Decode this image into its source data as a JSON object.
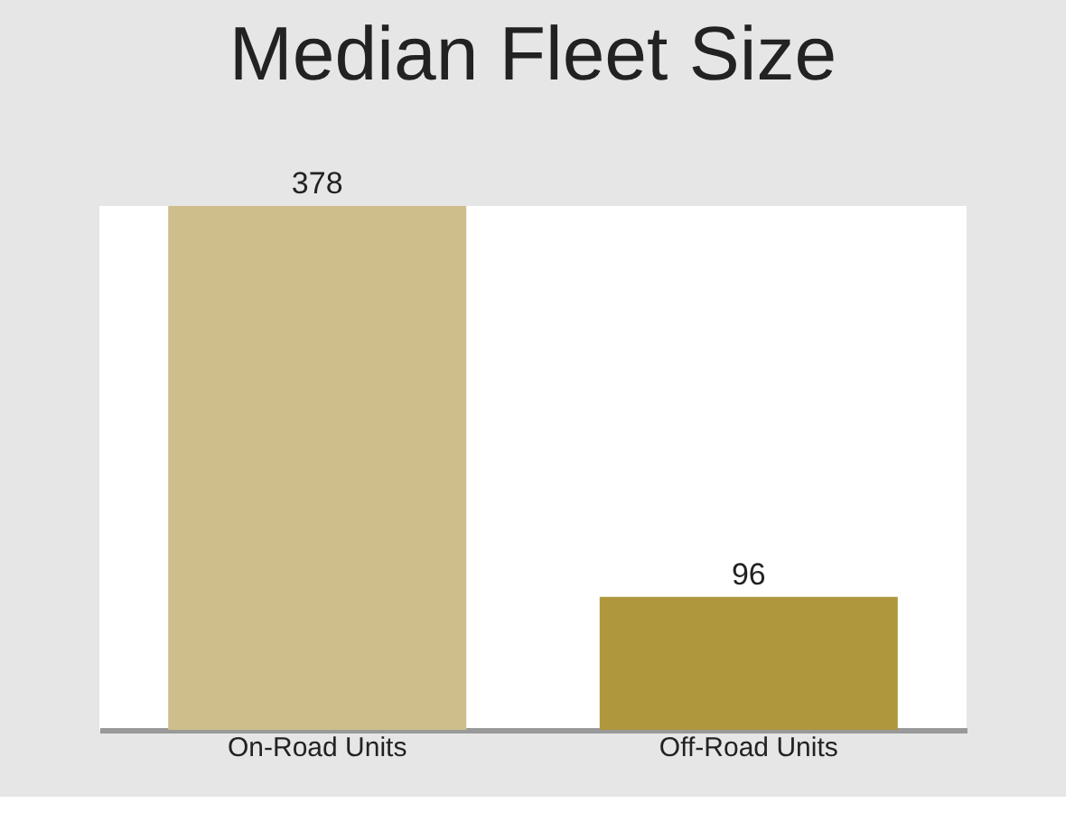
{
  "chart_data": {
    "type": "bar",
    "title": "Median Fleet Size",
    "categories": [
      "On-Road Units",
      "Off-Road Units"
    ],
    "values": [
      378,
      96
    ],
    "colors": [
      "#cdbe8b",
      "#ae973d"
    ],
    "data_labels": true,
    "grid": false
  }
}
